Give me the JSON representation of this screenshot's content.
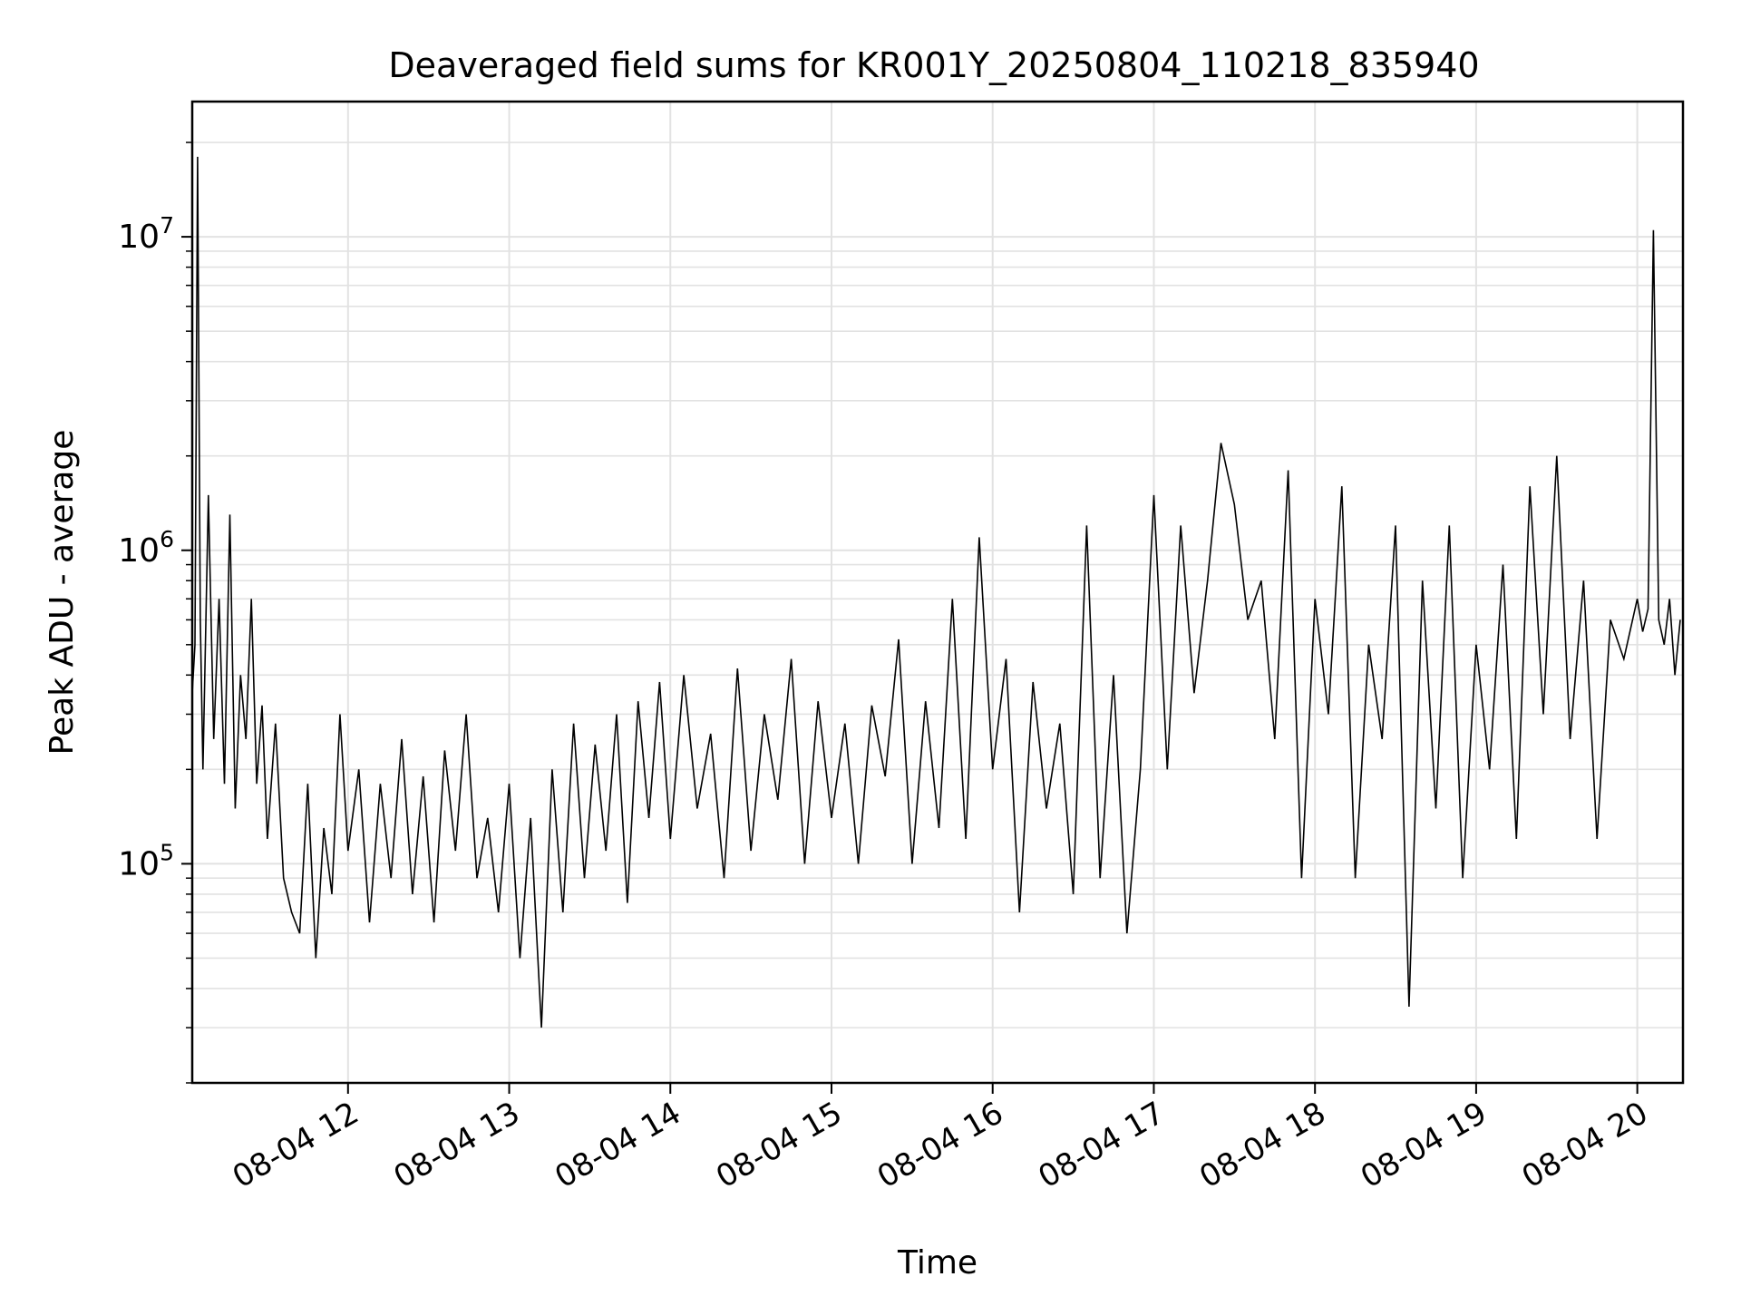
{
  "chart_data": {
    "type": "line",
    "title": "Deaveraged field sums for KR001Y_20250804_110218_835940",
    "xlabel": "Time",
    "ylabel": "Peak ADU - average",
    "yscale": "log",
    "grid": true,
    "xlim": [
      "2025-08-04 11:02",
      "2025-08-04 20:17"
    ],
    "ylim": [
      20000,
      27000000
    ],
    "x_ticks": [
      {
        "t": "2025-08-04 12:00",
        "label": "08-04 12"
      },
      {
        "t": "2025-08-04 13:00",
        "label": "08-04 13"
      },
      {
        "t": "2025-08-04 14:00",
        "label": "08-04 14"
      },
      {
        "t": "2025-08-04 15:00",
        "label": "08-04 15"
      },
      {
        "t": "2025-08-04 16:00",
        "label": "08-04 16"
      },
      {
        "t": "2025-08-04 17:00",
        "label": "08-04 17"
      },
      {
        "t": "2025-08-04 18:00",
        "label": "08-04 18"
      },
      {
        "t": "2025-08-04 19:00",
        "label": "08-04 19"
      },
      {
        "t": "2025-08-04 20:00",
        "label": "08-04 20"
      }
    ],
    "y_ticks": [
      {
        "value": 100000,
        "base": "10",
        "exp": "5"
      },
      {
        "value": 1000000,
        "base": "10",
        "exp": "6"
      },
      {
        "value": 10000000,
        "base": "10",
        "exp": "7"
      }
    ],
    "series": [
      {
        "color": "#000000",
        "x": [
          "2025-08-04 11:02",
          "2025-08-04 11:03",
          "2025-08-04 11:04",
          "2025-08-04 11:05",
          "2025-08-04 11:06",
          "2025-08-04 11:08",
          "2025-08-04 11:10",
          "2025-08-04 11:12",
          "2025-08-04 11:14",
          "2025-08-04 11:16",
          "2025-08-04 11:18",
          "2025-08-04 11:20",
          "2025-08-04 11:22",
          "2025-08-04 11:24",
          "2025-08-04 11:26",
          "2025-08-04 11:28",
          "2025-08-04 11:30",
          "2025-08-04 11:33",
          "2025-08-04 11:36",
          "2025-08-04 11:39",
          "2025-08-04 11:42",
          "2025-08-04 11:45",
          "2025-08-04 11:48",
          "2025-08-04 11:51",
          "2025-08-04 11:54",
          "2025-08-04 11:57",
          "2025-08-04 12:00",
          "2025-08-04 12:04",
          "2025-08-04 12:08",
          "2025-08-04 12:12",
          "2025-08-04 12:16",
          "2025-08-04 12:20",
          "2025-08-04 12:24",
          "2025-08-04 12:28",
          "2025-08-04 12:32",
          "2025-08-04 12:36",
          "2025-08-04 12:40",
          "2025-08-04 12:44",
          "2025-08-04 12:48",
          "2025-08-04 12:52",
          "2025-08-04 12:56",
          "2025-08-04 13:00",
          "2025-08-04 13:04",
          "2025-08-04 13:08",
          "2025-08-04 13:12",
          "2025-08-04 13:16",
          "2025-08-04 13:20",
          "2025-08-04 13:24",
          "2025-08-04 13:28",
          "2025-08-04 13:32",
          "2025-08-04 13:36",
          "2025-08-04 13:40",
          "2025-08-04 13:44",
          "2025-08-04 13:48",
          "2025-08-04 13:52",
          "2025-08-04 13:56",
          "2025-08-04 14:00",
          "2025-08-04 14:05",
          "2025-08-04 14:10",
          "2025-08-04 14:15",
          "2025-08-04 14:20",
          "2025-08-04 14:25",
          "2025-08-04 14:30",
          "2025-08-04 14:35",
          "2025-08-04 14:40",
          "2025-08-04 14:45",
          "2025-08-04 14:50",
          "2025-08-04 14:55",
          "2025-08-04 15:00",
          "2025-08-04 15:05",
          "2025-08-04 15:10",
          "2025-08-04 15:15",
          "2025-08-04 15:20",
          "2025-08-04 15:25",
          "2025-08-04 15:30",
          "2025-08-04 15:35",
          "2025-08-04 15:40",
          "2025-08-04 15:45",
          "2025-08-04 15:50",
          "2025-08-04 15:55",
          "2025-08-04 16:00",
          "2025-08-04 16:05",
          "2025-08-04 16:10",
          "2025-08-04 16:15",
          "2025-08-04 16:20",
          "2025-08-04 16:25",
          "2025-08-04 16:30",
          "2025-08-04 16:35",
          "2025-08-04 16:40",
          "2025-08-04 16:45",
          "2025-08-04 16:50",
          "2025-08-04 16:55",
          "2025-08-04 17:00",
          "2025-08-04 17:05",
          "2025-08-04 17:10",
          "2025-08-04 17:15",
          "2025-08-04 17:20",
          "2025-08-04 17:25",
          "2025-08-04 17:30",
          "2025-08-04 17:35",
          "2025-08-04 17:40",
          "2025-08-04 17:45",
          "2025-08-04 17:50",
          "2025-08-04 17:55",
          "2025-08-04 18:00",
          "2025-08-04 18:05",
          "2025-08-04 18:10",
          "2025-08-04 18:15",
          "2025-08-04 18:20",
          "2025-08-04 18:25",
          "2025-08-04 18:30",
          "2025-08-04 18:35",
          "2025-08-04 18:40",
          "2025-08-04 18:45",
          "2025-08-04 18:50",
          "2025-08-04 18:55",
          "2025-08-04 19:00",
          "2025-08-04 19:05",
          "2025-08-04 19:10",
          "2025-08-04 19:15",
          "2025-08-04 19:20",
          "2025-08-04 19:25",
          "2025-08-04 19:30",
          "2025-08-04 19:35",
          "2025-08-04 19:40",
          "2025-08-04 19:45",
          "2025-08-04 19:50",
          "2025-08-04 19:55",
          "2025-08-04 20:00",
          "2025-08-04 20:02",
          "2025-08-04 20:04",
          "2025-08-04 20:06",
          "2025-08-04 20:08",
          "2025-08-04 20:10",
          "2025-08-04 20:12",
          "2025-08-04 20:14",
          "2025-08-04 20:16"
        ],
        "y": [
          350000,
          500000,
          18000000,
          600000,
          200000,
          1500000,
          250000,
          700000,
          180000,
          1300000,
          150000,
          400000,
          250000,
          700000,
          180000,
          320000,
          120000,
          280000,
          90000,
          70000,
          60000,
          180000,
          50000,
          130000,
          80000,
          300000,
          110000,
          200000,
          65000,
          180000,
          90000,
          250000,
          80000,
          190000,
          65000,
          230000,
          110000,
          300000,
          90000,
          140000,
          70000,
          180000,
          50000,
          140000,
          30000,
          200000,
          70000,
          280000,
          90000,
          240000,
          110000,
          300000,
          75000,
          330000,
          140000,
          380000,
          120000,
          400000,
          150000,
          260000,
          90000,
          420000,
          110000,
          300000,
          160000,
          450000,
          100000,
          330000,
          140000,
          280000,
          100000,
          320000,
          190000,
          520000,
          100000,
          330000,
          130000,
          700000,
          120000,
          1100000,
          200000,
          450000,
          70000,
          380000,
          150000,
          280000,
          80000,
          1200000,
          90000,
          400000,
          60000,
          200000,
          1500000,
          200000,
          1200000,
          350000,
          800000,
          2200000,
          1400000,
          600000,
          800000,
          250000,
          1800000,
          90000,
          700000,
          300000,
          1600000,
          90000,
          500000,
          250000,
          1200000,
          35000,
          800000,
          150000,
          1200000,
          90000,
          500000,
          200000,
          900000,
          120000,
          1600000,
          300000,
          2000000,
          250000,
          800000,
          120000,
          600000,
          450000,
          700000,
          550000,
          650000,
          10500000,
          600000,
          500000,
          700000,
          400000,
          600000
        ]
      }
    ]
  }
}
